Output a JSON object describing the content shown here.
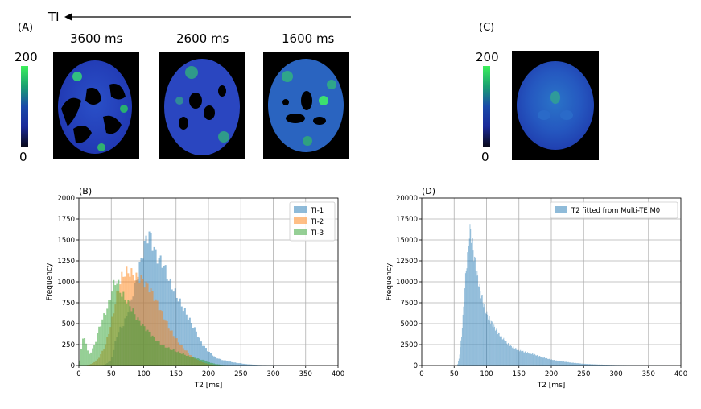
{
  "figure": {
    "ti_label": "TI",
    "panel_a_label": "(A)",
    "panel_b_label": "(B)",
    "panel_c_label": "(C)",
    "panel_d_label": "(D)",
    "ti_values": [
      "3600 ms",
      "2600 ms",
      "1600 ms"
    ],
    "colorbar_a": {
      "max": "200",
      "min": "0"
    },
    "colorbar_c": {
      "max": "200",
      "min": "0"
    },
    "colors": {
      "ti1": "#1f77b4",
      "ti2": "#ff7f0e",
      "ti3": "#2ca02c",
      "d": "#1f77b4"
    }
  },
  "chart_data": [
    {
      "id": "B",
      "type": "bar",
      "title": "",
      "xlabel": "T2 [ms]",
      "ylabel": "Frequency",
      "xlim": [
        0,
        400
      ],
      "ylim": [
        0,
        2000
      ],
      "xticks": [
        0,
        50,
        100,
        150,
        200,
        250,
        300,
        350,
        400
      ],
      "yticks": [
        0,
        250,
        500,
        750,
        1000,
        1250,
        1500,
        1750,
        2000
      ],
      "grid": true,
      "legend_position": "top-right",
      "bin_width": 2.5,
      "series": [
        {
          "name": "TI-1",
          "color": "#1f77b4",
          "knots": [
            [
              0,
              0
            ],
            [
              30,
              0
            ],
            [
              40,
              10
            ],
            [
              50,
              60
            ],
            [
              60,
              400
            ],
            [
              70,
              500
            ],
            [
              80,
              760
            ],
            [
              90,
              1050
            ],
            [
              100,
              1400
            ],
            [
              105,
              1550
            ],
            [
              110,
              1560
            ],
            [
              115,
              1420
            ],
            [
              120,
              1300
            ],
            [
              130,
              1220
            ],
            [
              140,
              1000
            ],
            [
              150,
              850
            ],
            [
              160,
              700
            ],
            [
              170,
              560
            ],
            [
              180,
              420
            ],
            [
              190,
              260
            ],
            [
              200,
              170
            ],
            [
              210,
              100
            ],
            [
              220,
              70
            ],
            [
              230,
              50
            ],
            [
              240,
              35
            ],
            [
              250,
              25
            ],
            [
              260,
              15
            ],
            [
              270,
              10
            ],
            [
              280,
              6
            ],
            [
              300,
              4
            ],
            [
              320,
              2
            ],
            [
              330,
              0
            ]
          ]
        },
        {
          "name": "TI-2",
          "color": "#ff7f0e",
          "knots": [
            [
              0,
              0
            ],
            [
              10,
              0
            ],
            [
              20,
              20
            ],
            [
              30,
              80
            ],
            [
              40,
              220
            ],
            [
              50,
              500
            ],
            [
              55,
              700
            ],
            [
              60,
              880
            ],
            [
              65,
              1040
            ],
            [
              70,
              1100
            ],
            [
              75,
              1120
            ],
            [
              80,
              1110
            ],
            [
              90,
              1050
            ],
            [
              95,
              1050
            ],
            [
              100,
              1000
            ],
            [
              110,
              920
            ],
            [
              120,
              760
            ],
            [
              130,
              600
            ],
            [
              140,
              440
            ],
            [
              150,
              320
            ],
            [
              160,
              220
            ],
            [
              170,
              140
            ],
            [
              180,
              80
            ],
            [
              190,
              40
            ],
            [
              200,
              18
            ],
            [
              210,
              6
            ],
            [
              220,
              0
            ]
          ]
        },
        {
          "name": "TI-3",
          "color": "#2ca02c",
          "knots": [
            [
              0,
              0
            ],
            [
              2.5,
              120
            ],
            [
              5,
              300
            ],
            [
              10,
              330
            ],
            [
              15,
              120
            ],
            [
              20,
              180
            ],
            [
              25,
              260
            ],
            [
              30,
              420
            ],
            [
              40,
              620
            ],
            [
              45,
              700
            ],
            [
              50,
              860
            ],
            [
              55,
              1000
            ],
            [
              60,
              1000
            ],
            [
              65,
              860
            ],
            [
              70,
              820
            ],
            [
              80,
              700
            ],
            [
              90,
              560
            ],
            [
              100,
              470
            ],
            [
              110,
              380
            ],
            [
              120,
              300
            ],
            [
              130,
              240
            ],
            [
              140,
              200
            ],
            [
              150,
              170
            ],
            [
              160,
              140
            ],
            [
              170,
              110
            ],
            [
              180,
              90
            ],
            [
              190,
              70
            ],
            [
              200,
              40
            ],
            [
              210,
              20
            ],
            [
              220,
              8
            ],
            [
              230,
              0
            ]
          ]
        }
      ]
    },
    {
      "id": "D",
      "type": "bar",
      "title": "",
      "xlabel": "T2 [ms]",
      "ylabel": "Frequency",
      "xlim": [
        0,
        400
      ],
      "ylim": [
        0,
        20000
      ],
      "xticks": [
        0,
        50,
        100,
        150,
        200,
        250,
        300,
        350,
        400
      ],
      "yticks": [
        0,
        2500,
        5000,
        7500,
        10000,
        12500,
        15000,
        17500,
        20000
      ],
      "grid": true,
      "legend_position": "top-right",
      "bin_width": 1,
      "series": [
        {
          "name": "T2 fitted from Multi-TE M0",
          "color": "#1f77b4",
          "knots": [
            [
              0,
              0
            ],
            [
              50,
              0
            ],
            [
              55,
              0
            ],
            [
              58,
              1000
            ],
            [
              62,
              4000
            ],
            [
              65,
              7500
            ],
            [
              68,
              11000
            ],
            [
              72,
              14500
            ],
            [
              74,
              16200
            ],
            [
              76,
              15800
            ],
            [
              80,
              13500
            ],
            [
              85,
              11000
            ],
            [
              90,
              9000
            ],
            [
              95,
              7500
            ],
            [
              100,
              6200
            ],
            [
              110,
              4800
            ],
            [
              120,
              3700
            ],
            [
              130,
              2800
            ],
            [
              140,
              2200
            ],
            [
              150,
              1800
            ],
            [
              160,
              1600
            ],
            [
              170,
              1400
            ],
            [
              180,
              1150
            ],
            [
              190,
              900
            ],
            [
              200,
              700
            ],
            [
              210,
              550
            ],
            [
              220,
              450
            ],
            [
              230,
              350
            ],
            [
              250,
              200
            ],
            [
              270,
              120
            ],
            [
              300,
              60
            ],
            [
              350,
              20
            ],
            [
              400,
              0
            ]
          ]
        }
      ]
    }
  ]
}
